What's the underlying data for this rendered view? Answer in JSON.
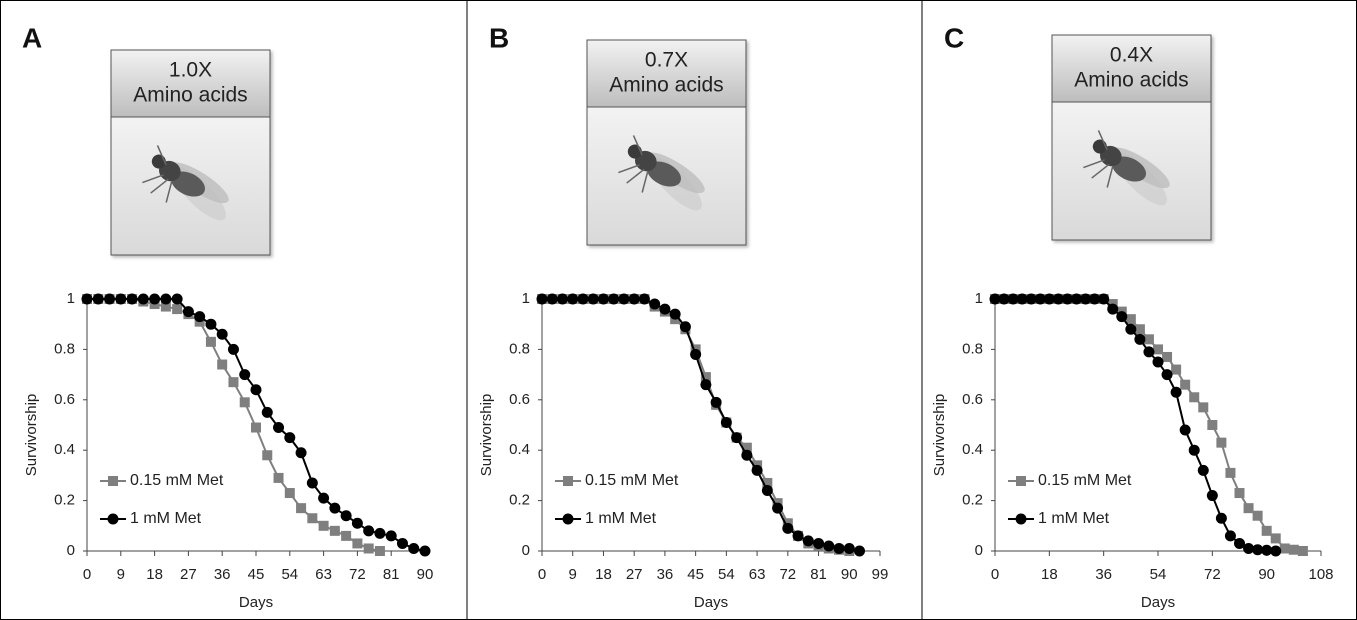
{
  "chart_data": [
    {
      "type": "line",
      "panel_label": "A",
      "inset_label": [
        "1.0X",
        "Amino acids"
      ],
      "x_label": "Days",
      "y_label": "Survivorship",
      "legend": "lower left",
      "xlim": [
        0,
        90
      ],
      "ylim": [
        0,
        1
      ],
      "xticks": [
        0,
        9,
        18,
        27,
        36,
        45,
        54,
        63,
        72,
        81,
        90
      ],
      "yticks": [
        0,
        0.2,
        0.4,
        0.6,
        0.8,
        1
      ],
      "x": [
        0,
        3,
        6,
        9,
        12,
        15,
        18,
        21,
        24,
        27,
        30,
        33,
        36,
        39,
        42,
        45,
        48,
        51,
        54,
        57,
        60,
        63,
        66,
        69,
        72,
        75,
        78,
        81,
        84,
        87,
        90
      ],
      "series": [
        {
          "name": "0.15 mM Met",
          "color": "#7f7f7f",
          "marker": "square",
          "values": [
            1,
            1,
            1,
            1,
            1,
            0.99,
            0.98,
            0.97,
            0.96,
            0.94,
            0.91,
            0.83,
            0.74,
            0.67,
            0.59,
            0.49,
            0.38,
            0.29,
            0.23,
            0.17,
            0.13,
            0.1,
            0.08,
            0.06,
            0.03,
            0.01,
            0,
            null,
            null,
            null,
            null
          ]
        },
        {
          "name": "1 mM Met",
          "color": "#000000",
          "marker": "circle",
          "values": [
            1,
            1,
            1,
            1,
            1,
            1,
            1,
            1,
            1,
            0.95,
            0.93,
            0.9,
            0.86,
            0.8,
            0.7,
            0.64,
            0.55,
            0.49,
            0.45,
            0.39,
            0.27,
            0.21,
            0.17,
            0.14,
            0.11,
            0.08,
            0.07,
            0.06,
            0.03,
            0.01,
            0
          ]
        }
      ]
    },
    {
      "type": "line",
      "panel_label": "B",
      "inset_label": [
        "0.7X",
        "Amino acids"
      ],
      "x_label": "Days",
      "y_label": "Survivorship",
      "legend": "lower left",
      "xlim": [
        0,
        99
      ],
      "ylim": [
        0,
        1
      ],
      "xticks": [
        0,
        9,
        18,
        27,
        36,
        45,
        54,
        63,
        72,
        81,
        90,
        99
      ],
      "yticks": [
        0,
        0.2,
        0.4,
        0.6,
        0.8,
        1
      ],
      "x": [
        0,
        3,
        6,
        9,
        12,
        15,
        18,
        21,
        24,
        27,
        30,
        33,
        36,
        39,
        42,
        45,
        48,
        51,
        54,
        57,
        60,
        63,
        66,
        69,
        72,
        75,
        78,
        81,
        84,
        87,
        90,
        93
      ],
      "series": [
        {
          "name": "0.15 mM Met",
          "color": "#7f7f7f",
          "marker": "square",
          "values": [
            1,
            1,
            1,
            1,
            1,
            1,
            1,
            1,
            1,
            1,
            1,
            0.97,
            0.95,
            0.92,
            0.88,
            0.8,
            0.69,
            0.58,
            0.51,
            0.45,
            0.41,
            0.34,
            0.27,
            0.19,
            0.11,
            0.06,
            0.03,
            0.02,
            0.01,
            0.005,
            0,
            null
          ]
        },
        {
          "name": "1 mM Met",
          "color": "#000000",
          "marker": "circle",
          "values": [
            1,
            1,
            1,
            1,
            1,
            1,
            1,
            1,
            1,
            1,
            1,
            0.98,
            0.96,
            0.94,
            0.89,
            0.78,
            0.66,
            0.59,
            0.51,
            0.45,
            0.38,
            0.32,
            0.24,
            0.17,
            0.09,
            0.06,
            0.04,
            0.03,
            0.02,
            0.01,
            0.01,
            0
          ]
        }
      ]
    },
    {
      "type": "line",
      "panel_label": "C",
      "inset_label": [
        "0.4X",
        "Amino acids"
      ],
      "x_label": "Days",
      "y_label": "Survivorship",
      "legend": "lower left",
      "xlim": [
        0,
        108
      ],
      "ylim": [
        0,
        1
      ],
      "xticks": [
        0,
        18,
        36,
        54,
        72,
        90,
        108
      ],
      "yticks": [
        0,
        0.2,
        0.4,
        0.6,
        0.8,
        1
      ],
      "x": [
        0,
        3,
        6,
        9,
        12,
        15,
        18,
        21,
        24,
        27,
        30,
        33,
        36,
        39,
        42,
        45,
        48,
        51,
        54,
        57,
        60,
        63,
        66,
        69,
        72,
        75,
        78,
        81,
        84,
        87,
        90,
        93,
        96,
        99,
        102,
        105
      ],
      "series": [
        {
          "name": "0.15 mM Met",
          "color": "#7f7f7f",
          "marker": "square",
          "values": [
            1,
            1,
            1,
            1,
            1,
            1,
            1,
            1,
            1,
            1,
            1,
            1,
            1,
            0.98,
            0.95,
            0.92,
            0.88,
            0.84,
            0.8,
            0.77,
            0.72,
            0.66,
            0.61,
            0.57,
            0.5,
            0.43,
            0.31,
            0.23,
            0.17,
            0.14,
            0.08,
            0.05,
            0.01,
            0.005,
            0,
            null
          ]
        },
        {
          "name": "1 mM Met",
          "color": "#000000",
          "marker": "circle",
          "values": [
            1,
            1,
            1,
            1,
            1,
            1,
            1,
            1,
            1,
            1,
            1,
            1,
            1,
            0.96,
            0.93,
            0.88,
            0.84,
            0.79,
            0.75,
            0.7,
            0.63,
            0.48,
            0.4,
            0.32,
            0.22,
            0.13,
            0.06,
            0.03,
            0.01,
            0.005,
            0.003,
            0,
            null,
            null,
            null,
            null
          ]
        }
      ]
    }
  ]
}
